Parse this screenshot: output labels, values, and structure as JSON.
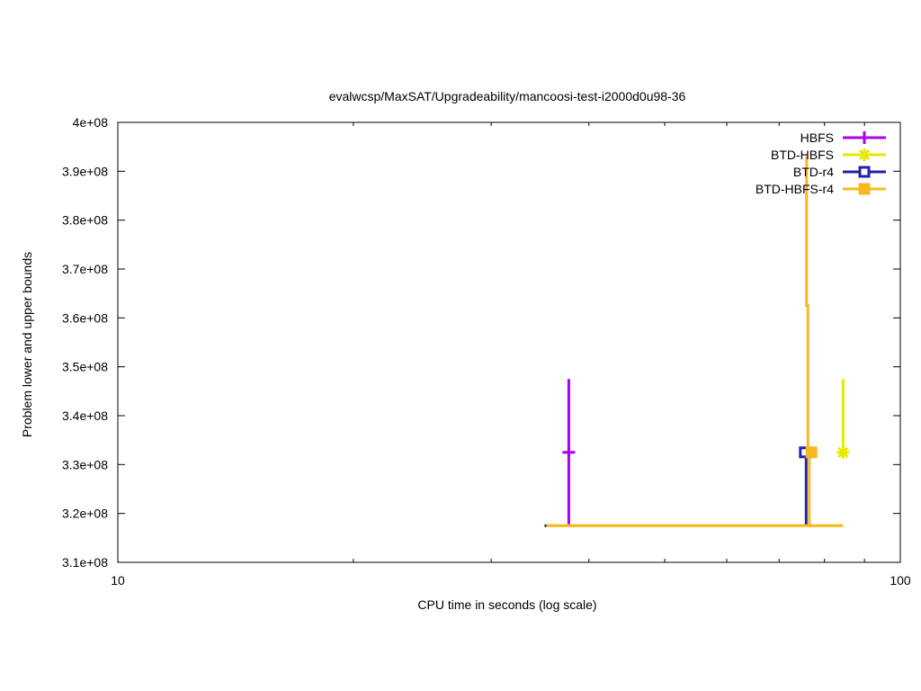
{
  "chart_data": {
    "type": "line",
    "title": "evalwcsp/MaxSAT/Upgradeability/mancoosi-test-i2000d0u98-36",
    "xlabel": "CPU time in seconds (log scale)",
    "ylabel": "Problem lower and upper bounds",
    "xscale": "log",
    "xlim": [
      10,
      100
    ],
    "ylim": [
      310000000,
      400000000
    ],
    "x_ticks": [
      {
        "value": 10,
        "label": "10"
      },
      {
        "value": 100,
        "label": "100"
      }
    ],
    "x_minor_ticks": [
      20,
      30,
      40,
      50,
      60,
      70,
      80,
      90
    ],
    "y_ticks": [
      {
        "value": 310000000,
        "label": "3.1e+08"
      },
      {
        "value": 320000000,
        "label": "3.2e+08"
      },
      {
        "value": 330000000,
        "label": "3.3e+08"
      },
      {
        "value": 340000000,
        "label": "3.4e+08"
      },
      {
        "value": 350000000,
        "label": "3.5e+08"
      },
      {
        "value": 360000000,
        "label": "3.6e+08"
      },
      {
        "value": 370000000,
        "label": "3.7e+08"
      },
      {
        "value": 380000000,
        "label": "3.8e+08"
      },
      {
        "value": 390000000,
        "label": "3.9e+08"
      },
      {
        "value": 400000000,
        "label": "4e+08"
      }
    ],
    "grid": false,
    "legend_position": "top-right",
    "series": [
      {
        "name": "HBFS",
        "color": "#aa00ee",
        "marker": "plus",
        "segments": [
          [
            [
              37.7,
              347500000
            ],
            [
              37.7,
              332500000
            ]
          ],
          [
            [
              37.7,
              317500000
            ],
            [
              37.7,
              332500000
            ]
          ]
        ],
        "markers": [
          [
            37.7,
            332500000
          ]
        ]
      },
      {
        "name": "BTD-HBFS",
        "color": "#e8e800",
        "marker": "star",
        "segments": [
          [
            [
              84.5,
              347500000
            ],
            [
              84.5,
              332500000
            ]
          ],
          [
            [
              35.1,
              317500000
            ],
            [
              84.5,
              317500000
            ]
          ]
        ],
        "markers": [
          [
            84.5,
            332500000
          ]
        ]
      },
      {
        "name": "BTD-r4",
        "color": "#2222aa",
        "marker": "open-square",
        "segments": [
          [
            [
              35.1,
              317500000
            ],
            [
              35.3,
              317500000
            ]
          ],
          [
            [
              75.8,
              317500000
            ],
            [
              75.8,
              332500000
            ]
          ]
        ],
        "markers": [
          [
            75.5,
            332500000
          ]
        ]
      },
      {
        "name": "BTD-HBFS-r4",
        "color": "#f8b820",
        "marker": "filled-square",
        "segments": [
          [
            [
              35.3,
              317500000
            ],
            [
              84.5,
              317500000
            ]
          ],
          [
            [
              76.5,
              317500000
            ],
            [
              76.5,
              332500000
            ]
          ],
          [
            [
              75.9,
              393000000
            ],
            [
              75.9,
              362500000
            ],
            [
              76.2,
              362500000
            ],
            [
              76.2,
              332500000
            ]
          ]
        ],
        "markers": [
          [
            77.0,
            332500000
          ]
        ]
      }
    ]
  }
}
